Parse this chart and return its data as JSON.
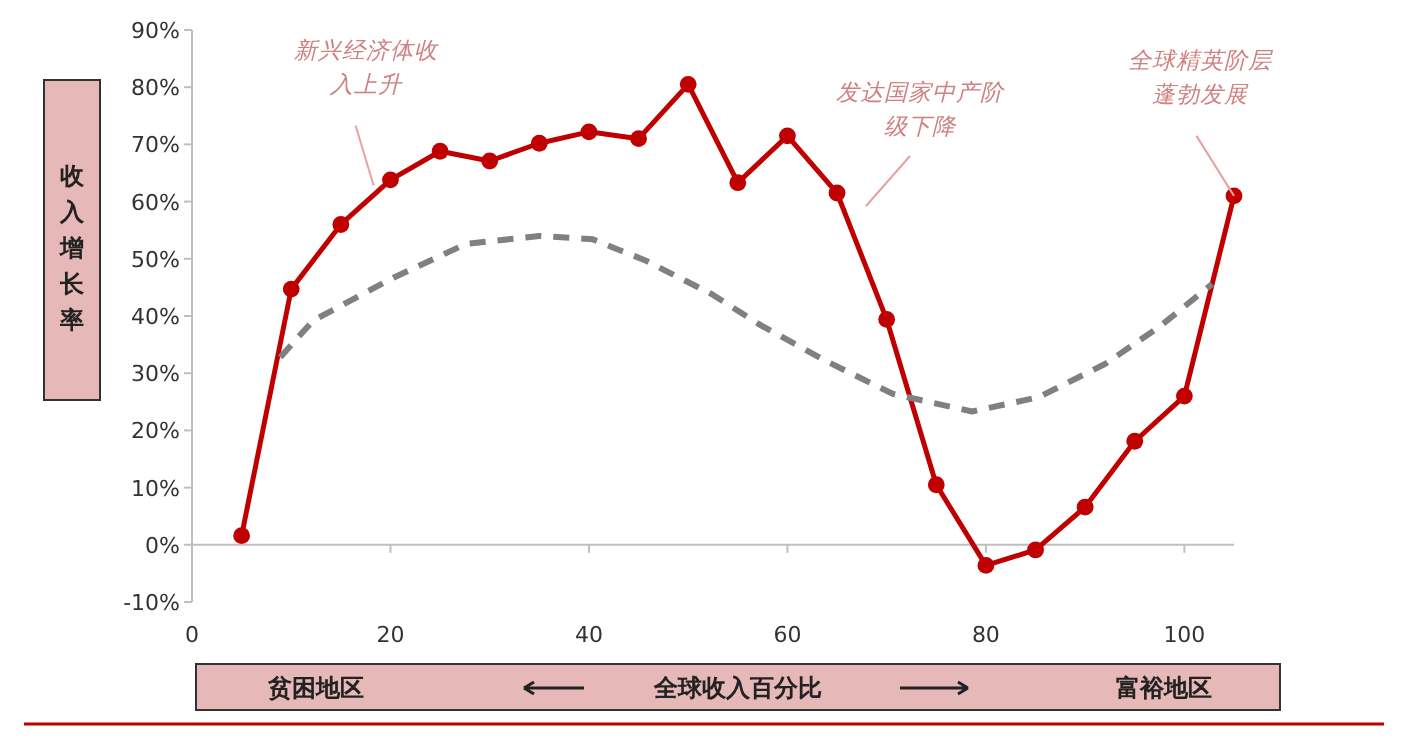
{
  "chart_data": {
    "type": "line",
    "xlabel": "全球收入百分比",
    "ylabel": "收入增长率",
    "xlim": [
      0,
      105
    ],
    "xticks": [
      0,
      20,
      40,
      60,
      80,
      100
    ],
    "ylim": [
      -10,
      90
    ],
    "yticks": [
      {
        "value": -10,
        "label": "-10%"
      },
      {
        "value": 0,
        "label": "0%"
      },
      {
        "value": 10,
        "label": "10%"
      },
      {
        "value": 20,
        "label": "20%"
      },
      {
        "value": 30,
        "label": "30%"
      },
      {
        "value": 40,
        "label": "40%"
      },
      {
        "value": 50,
        "label": "50%"
      },
      {
        "value": 60,
        "label": "60%"
      },
      {
        "value": 70,
        "label": "70%"
      },
      {
        "value": 80,
        "label": "80%"
      },
      {
        "value": 90,
        "label": "90%"
      }
    ],
    "series": [
      {
        "color": "#c00000",
        "marker": "circle",
        "line_style": "solid",
        "x": [
          5,
          10,
          15,
          20,
          25,
          30,
          35,
          40,
          45,
          50,
          55,
          60,
          65,
          70,
          75,
          80,
          85,
          90,
          95,
          100,
          105
        ],
        "values": [
          1.6,
          44.7,
          56,
          63.8,
          68.8,
          67.1,
          70.2,
          72.2,
          71,
          80.5,
          63.3,
          71.5,
          61.5,
          39.4,
          10.5,
          -3.6,
          -0.9,
          6.6,
          18.1,
          26,
          61
        ]
      },
      {
        "color": "#808080",
        "marker": "none",
        "line_style": "dashed",
        "x": [
          8.9,
          12.2,
          20.3,
          27.6,
          35,
          40.4,
          45.7,
          52.4,
          57.1,
          63.8,
          70.6,
          78.6,
          85.3,
          92,
          97.4,
          102.8
        ],
        "values": [
          32.8,
          39.2,
          46.7,
          52.6,
          54,
          53.4,
          49.7,
          43.8,
          38.6,
          32.2,
          26.4,
          23.3,
          25.8,
          31.6,
          38,
          45.6
        ]
      }
    ],
    "annotations": [
      {
        "text": "新兴经济体收入上升",
        "x": 18.3,
        "y": 62.8
      },
      "发达国家中产阶级下降",
      {
        "text": "全球精英阶层蓬勃发展",
        "x": 105,
        "y": 61
      },
      "贫困地区",
      "富裕地区"
    ]
  }
}
